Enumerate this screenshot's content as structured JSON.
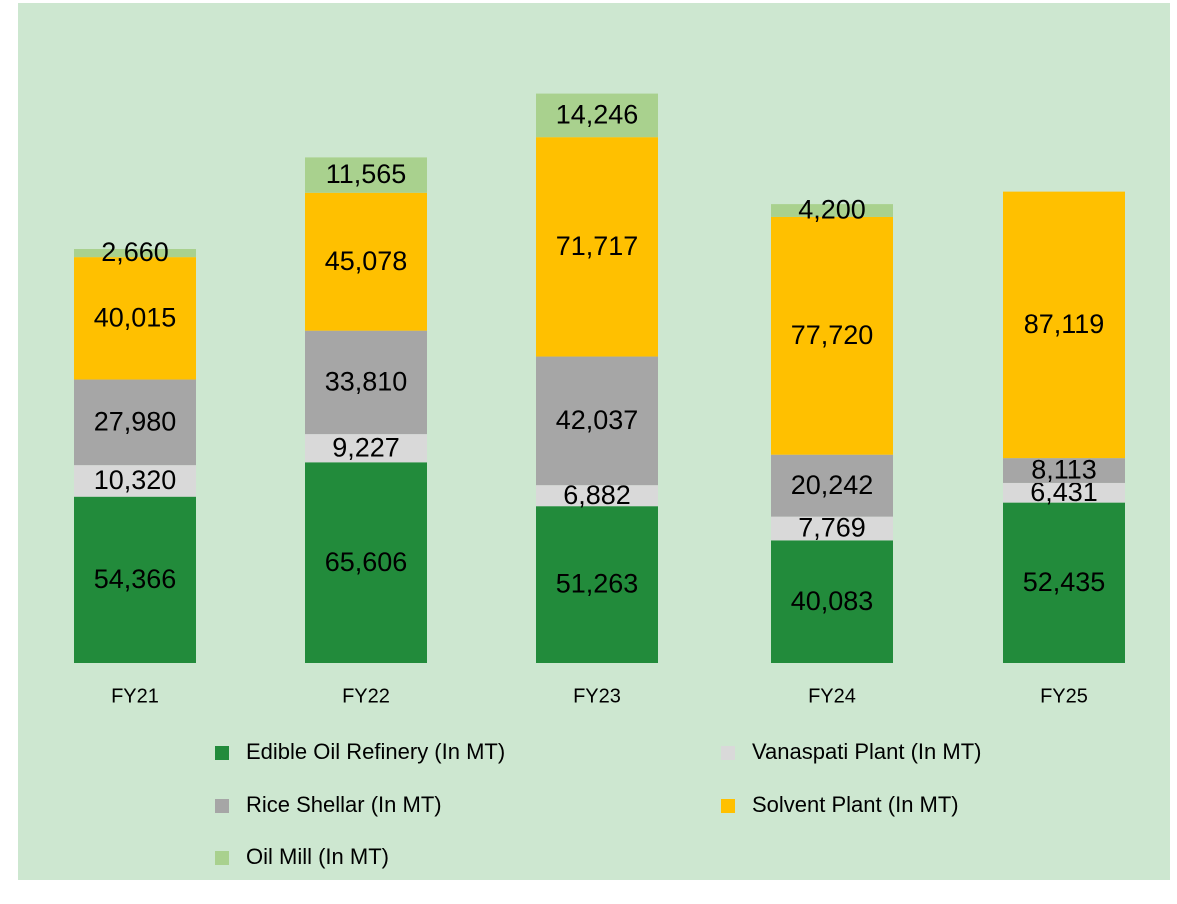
{
  "chart_data": {
    "type": "stacked_bar",
    "categories": [
      "FY21",
      "FY22",
      "FY23",
      "FY24",
      "FY25"
    ],
    "series": [
      {
        "name": "Edible Oil Refinery (In MT)",
        "color": "#228b3b",
        "values": [
          54366,
          65606,
          51263,
          40083,
          52435
        ],
        "value_labels": [
          "54,366",
          "65,606",
          "51,263",
          "40,083",
          "52,435"
        ]
      },
      {
        "name": "Vanaspati Plant (In MT)",
        "color": "#d9d9d9",
        "values": [
          10320,
          9227,
          6882,
          7769,
          6431
        ],
        "value_labels": [
          "10,320",
          "9,227",
          "6,882",
          "7,769",
          "6,431"
        ]
      },
      {
        "name": "Rice Shellar (In MT)",
        "color": "#a6a6a6",
        "values": [
          27980,
          33810,
          42037,
          20242,
          8113
        ],
        "value_labels": [
          "27,980",
          "33,810",
          "42,037",
          "20,242",
          "8,113"
        ]
      },
      {
        "name": "Solvent Plant (In MT)",
        "color": "#ffc000",
        "values": [
          40015,
          45078,
          71717,
          77720,
          87119
        ],
        "value_labels": [
          "40,015",
          "45,078",
          "71,717",
          "77,720",
          "87,119"
        ]
      },
      {
        "name": "Oil Mill (In MT)",
        "color": "#a9d18e",
        "values": [
          2660,
          11565,
          14246,
          4200,
          null
        ],
        "value_labels": [
          "2,660",
          "11,565",
          "14,246",
          "4,200",
          null
        ]
      }
    ]
  }
}
